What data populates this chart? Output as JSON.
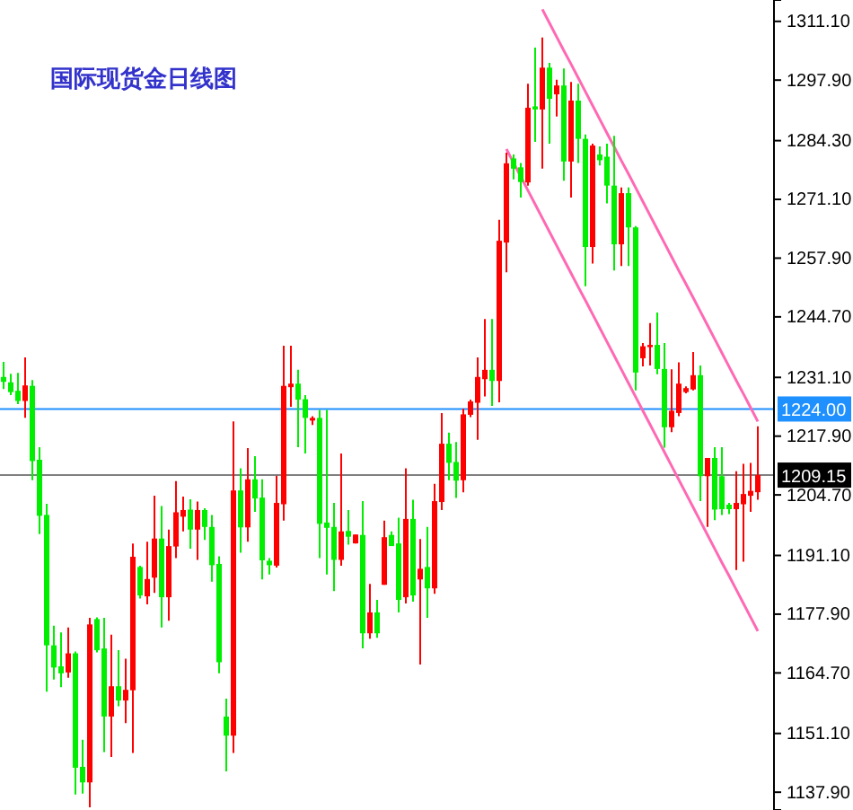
{
  "chart_data": {
    "type": "candlestick",
    "title": "国际现货金日线图",
    "categories": [
      null,
      null,
      null,
      null,
      null,
      null,
      null,
      null,
      null,
      null,
      null,
      null,
      null,
      null,
      null,
      null,
      null,
      null,
      null,
      null,
      null,
      null,
      null,
      null,
      null,
      null,
      null,
      null,
      null,
      null,
      null,
      null,
      null,
      null,
      null,
      null,
      null,
      null,
      null,
      null,
      null,
      null,
      null,
      null,
      null,
      null,
      null,
      null,
      null,
      null,
      null,
      null,
      null,
      null,
      null,
      null,
      null,
      null,
      null,
      null,
      null,
      null,
      null,
      null,
      null,
      null,
      null,
      null,
      null,
      null,
      null,
      null,
      null,
      null,
      null,
      null,
      null,
      null,
      null,
      null,
      null,
      null,
      null,
      null,
      null,
      null,
      null,
      null,
      null,
      null,
      null,
      null,
      null,
      null,
      null,
      null,
      null,
      null,
      null,
      null,
      null,
      null,
      null,
      null,
      null,
      null
    ],
    "ohlc": [
      [
        1231.2,
        1234.6,
        1228.5,
        1230.1
      ],
      [
        1230.0,
        1231.9,
        1227.1,
        1227.8
      ],
      [
        1228.1,
        1232.1,
        1225.1,
        1225.8
      ],
      [
        1225.8,
        1235.6,
        1222.0,
        1229.3
      ],
      [
        1229.2,
        1230.5,
        1208.0,
        1212.3
      ],
      [
        1212.6,
        1215.4,
        1195.9,
        1200.0
      ],
      [
        1200.2,
        1202.7,
        1160.5,
        1170.9
      ],
      [
        1170.9,
        1175.3,
        1163.2,
        1165.9
      ],
      [
        1166.2,
        1173.8,
        1161.5,
        1164.6
      ],
      [
        1164.8,
        1174.9,
        1163.6,
        1169.1
      ],
      [
        1169.1,
        1169.5,
        1137.4,
        1143.4
      ],
      [
        1143.6,
        1149.7,
        1137.6,
        1140.1
      ],
      [
        1140.1,
        1177.1,
        1134.5,
        1175.6
      ],
      [
        1176.8,
        1177.2,
        1169.3,
        1169.8
      ],
      [
        1170.2,
        1177.1,
        1146.9,
        1154.9
      ],
      [
        1154.9,
        1173.3,
        1145.8,
        1161.7
      ],
      [
        1161.7,
        1169.8,
        1157.2,
        1158.5
      ],
      [
        1158.5,
        1167.9,
        1153.4,
        1160.9
      ],
      [
        1160.8,
        1193.8,
        1146.7,
        1190.8
      ],
      [
        1188.5,
        1188.8,
        1181.4,
        1182.1
      ],
      [
        1181.9,
        1194.2,
        1180.1,
        1185.8
      ],
      [
        1186.1,
        1204.5,
        1182.7,
        1194.9
      ],
      [
        1194.9,
        1202.2,
        1174.9,
        1181.7
      ],
      [
        1181.7,
        1196.9,
        1176.4,
        1193.2
      ],
      [
        1193.1,
        1207.8,
        1190.5,
        1200.8
      ],
      [
        1199.8,
        1204.3,
        1196.5,
        1201.3
      ],
      [
        1201.4,
        1203.7,
        1192.6,
        1196.9
      ],
      [
        1196.9,
        1203.2,
        1190.1,
        1201.3
      ],
      [
        1201.3,
        1201.7,
        1194.6,
        1197.5
      ],
      [
        1197.5,
        1200.2,
        1185.2,
        1188.9
      ],
      [
        1189.2,
        1190.9,
        1164.6,
        1167.1
      ],
      [
        1154.9,
        1158.9,
        1142.6,
        1150.6
      ],
      [
        1150.6,
        1221.2,
        1146.7,
        1205.7
      ],
      [
        1205.7,
        1210.7,
        1191.7,
        1197.4
      ],
      [
        1197.4,
        1215.2,
        1194.2,
        1208.2
      ],
      [
        1208.2,
        1213.4,
        1200.9,
        1203.9
      ],
      [
        1204.1,
        1208.2,
        1185.7,
        1190.0
      ],
      [
        1189.9,
        1190.5,
        1186.8,
        1188.9
      ],
      [
        1188.8,
        1209.0,
        1188.4,
        1202.9
      ],
      [
        1202.6,
        1238.2,
        1198.9,
        1229.2
      ],
      [
        1228.9,
        1238.2,
        1224.5,
        1229.7
      ],
      [
        1229.7,
        1232.8,
        1215.4,
        1226.1
      ],
      [
        1226.2,
        1227.1,
        1214.0,
        1222.0
      ],
      [
        1221.4,
        1222.4,
        1220.4,
        1222.0
      ],
      [
        1222.0,
        1223.8,
        1190.5,
        1198.2
      ],
      [
        1198.5,
        1223.8,
        1186.8,
        1197.3
      ],
      [
        1197.5,
        1202.9,
        1183.1,
        1190.1
      ],
      [
        1190.1,
        1214.0,
        1188.8,
        1196.5
      ],
      [
        1196.6,
        1201.3,
        1193.5,
        1195.3
      ],
      [
        1193.8,
        1195.8,
        1193.8,
        1195.8
      ],
      [
        1195.7,
        1203.3,
        1170.2,
        1173.6
      ],
      [
        1173.6,
        1184.7,
        1172.4,
        1178.3
      ],
      [
        1178.3,
        1181.1,
        1172.6,
        1173.6
      ],
      [
        1184.5,
        1198.9,
        1184.5,
        1195.2
      ],
      [
        1195.7,
        1196.5,
        1193.2,
        1193.2
      ],
      [
        1193.8,
        1199.6,
        1178.3,
        1181.1
      ],
      [
        1181.7,
        1210.7,
        1180.3,
        1199.3
      ],
      [
        1199.3,
        1203.6,
        1180.7,
        1182.1
      ],
      [
        1185.7,
        1194.8,
        1166.6,
        1188.1
      ],
      [
        1188.5,
        1197.5,
        1177.1,
        1183.7
      ],
      [
        1183.7,
        1207.2,
        1182.5,
        1203.3
      ],
      [
        1203.1,
        1223.1,
        1201.3,
        1216.2
      ],
      [
        1216.2,
        1218.7,
        1208.0,
        1211.9
      ],
      [
        1212.1,
        1216.6,
        1204.0,
        1207.9
      ],
      [
        1208.0,
        1224.1,
        1205.3,
        1222.8
      ],
      [
        1222.7,
        1226.1,
        1222.2,
        1225.7
      ],
      [
        1225.4,
        1235.6,
        1217.1,
        1231.2
      ],
      [
        1230.7,
        1244.2,
        1226.8,
        1232.8
      ],
      [
        1232.8,
        1244.2,
        1224.7,
        1230.3
      ],
      [
        1230.3,
        1266.5,
        1225.5,
        1261.8
      ],
      [
        1261.4,
        1281.6,
        1254.7,
        1279.2
      ],
      [
        1280.3,
        1281.2,
        1275.6,
        1278.0
      ],
      [
        1278.3,
        1279.3,
        1271.5,
        1275.0
      ],
      [
        1274.9,
        1297.1,
        1274.2,
        1291.7
      ],
      [
        1292.0,
        1305.2,
        1284.0,
        1291.3
      ],
      [
        1291.3,
        1307.5,
        1278.0,
        1300.7
      ],
      [
        1300.7,
        1301.8,
        1283.6,
        1293.7
      ],
      [
        1294.7,
        1298.0,
        1289.7,
        1296.7
      ],
      [
        1296.7,
        1300.5,
        1275.3,
        1279.6
      ],
      [
        1279.6,
        1297.5,
        1271.5,
        1293.3
      ],
      [
        1293.3,
        1297.1,
        1279.3,
        1284.7
      ],
      [
        1284.7,
        1285.7,
        1251.6,
        1260.4
      ],
      [
        1260.4,
        1283.6,
        1256.7,
        1283.2
      ],
      [
        1281.2,
        1283.0,
        1278.7,
        1279.9
      ],
      [
        1280.7,
        1283.6,
        1270.2,
        1274.2
      ],
      [
        1274.2,
        1285.4,
        1255.1,
        1261.0
      ],
      [
        1261.0,
        1273.8,
        1256.1,
        1272.5
      ],
      [
        1272.5,
        1273.8,
        1256.1,
        1264.8
      ],
      [
        1264.8,
        1265.1,
        1228.2,
        1232.2
      ],
      [
        1235.4,
        1238.8,
        1233.6,
        1238.1
      ],
      [
        1237.9,
        1243.3,
        1233.8,
        1238.4
      ],
      [
        1238.4,
        1245.7,
        1231.8,
        1233.0
      ],
      [
        1233.0,
        1238.8,
        1215.3,
        1219.9
      ],
      [
        1219.9,
        1232.9,
        1218.8,
        1223.6
      ],
      [
        1223.1,
        1234.5,
        1222.4,
        1229.7
      ],
      [
        1227.8,
        1229.1,
        1227.5,
        1228.7
      ],
      [
        1228.4,
        1236.8,
        1228.2,
        1231.6
      ],
      [
        1231.6,
        1233.8,
        1203.3,
        1208.9
      ],
      [
        1208.9,
        1213.0,
        1197.5,
        1213.0
      ],
      [
        1213.0,
        1215.4,
        1199.0,
        1201.4
      ],
      [
        1208.9,
        1215.4,
        1200.2,
        1201.5
      ],
      [
        1202.5,
        1202.9,
        1200.4,
        1201.5
      ],
      [
        1201.5,
        1210.0,
        1187.8,
        1202.9
      ],
      [
        1202.6,
        1211.7,
        1189.7,
        1204.9
      ],
      [
        1204.5,
        1211.9,
        1200.9,
        1205.6
      ],
      [
        1205.3,
        1220.1,
        1203.6,
        1209.15
      ]
    ],
    "series": [
      {
        "type": "line",
        "color": "#ff69b4",
        "values": [
          null,
          null,
          null,
          null,
          null,
          null,
          null,
          null,
          null,
          null,
          null,
          null,
          null,
          null,
          null,
          null,
          null,
          null,
          null,
          null,
          null,
          null,
          null,
          null,
          null,
          null,
          null,
          null,
          null,
          null,
          null,
          null,
          null,
          null,
          null,
          null,
          null,
          null,
          null,
          null,
          null,
          null,
          null,
          null,
          null,
          null,
          null,
          null,
          null,
          null,
          null,
          null,
          null,
          null,
          null,
          null,
          null,
          null,
          null,
          null,
          null,
          null,
          null,
          null,
          null,
          null,
          null,
          null,
          null,
          null,
          null,
          null,
          null,
          null,
          null,
          1313.8,
          1310.7,
          1307.6,
          1304.5,
          1301.5,
          1298.4,
          1295.3,
          1292.2,
          1289.1,
          1286.0,
          1282.9,
          1279.8,
          1276.8,
          1273.7,
          1270.6,
          1267.5,
          1264.4,
          1261.3,
          1258.2,
          1255.1,
          1252.1,
          1249.0,
          1245.9,
          1242.8,
          1239.7,
          1236.6,
          1233.5,
          1230.4,
          1227.4,
          1224.3,
          1221.2
        ]
      },
      {
        "type": "line",
        "color": "#ff69b4",
        "values": [
          null,
          null,
          null,
          null,
          null,
          null,
          null,
          null,
          null,
          null,
          null,
          null,
          null,
          null,
          null,
          null,
          null,
          null,
          null,
          null,
          null,
          null,
          null,
          null,
          null,
          null,
          null,
          null,
          null,
          null,
          null,
          null,
          null,
          null,
          null,
          null,
          null,
          null,
          null,
          null,
          null,
          null,
          null,
          null,
          null,
          null,
          null,
          null,
          null,
          null,
          null,
          null,
          null,
          null,
          null,
          null,
          null,
          null,
          null,
          null,
          null,
          null,
          null,
          null,
          null,
          null,
          null,
          null,
          null,
          null,
          1282.4,
          1279.3,
          1276.2,
          1273.1,
          1270.0,
          1266.9,
          1263.8,
          1260.7,
          1257.6,
          1254.5,
          1251.4,
          1248.4,
          1245.3,
          1242.2,
          1239.1,
          1236.0,
          1232.9,
          1229.8,
          1226.7,
          1223.6,
          1220.5,
          1217.4,
          1214.3,
          1211.2,
          1208.1,
          1205.0,
          1201.9,
          1198.8,
          1195.7,
          1192.6,
          1189.5,
          1186.5,
          1183.4,
          1180.3,
          1177.2,
          1174.1
        ]
      }
    ],
    "ylim": [
      1133.9,
      1315.9
    ],
    "yticks": [
      {
        "value": 1311.1,
        "label": "1311.10"
      },
      {
        "value": 1297.9,
        "label": "1297.90"
      },
      {
        "value": 1284.3,
        "label": "1284.30"
      },
      {
        "value": 1271.1,
        "label": "1271.10"
      },
      {
        "value": 1257.9,
        "label": "1257.90"
      },
      {
        "value": 1244.7,
        "label": "1244.70"
      },
      {
        "value": 1231.1,
        "label": "1231.10"
      },
      {
        "value": 1217.9,
        "label": "1217.90"
      },
      {
        "value": 1204.7,
        "label": "1204.70"
      },
      {
        "value": 1191.1,
        "label": "1191.10"
      },
      {
        "value": 1177.9,
        "label": "1177.90"
      },
      {
        "value": 1164.7,
        "label": "1164.70"
      },
      {
        "value": 1151.1,
        "label": "1151.10"
      },
      {
        "value": 1137.9,
        "label": "1137.90"
      }
    ],
    "ref_lines": [
      {
        "axis": "y",
        "value": 1224.0,
        "label": "1224.00",
        "color": "#1e90ff"
      },
      {
        "axis": "y",
        "value": 1209.15,
        "label": "1209.15",
        "color": "#808080"
      }
    ],
    "tick_labels": "y"
  }
}
